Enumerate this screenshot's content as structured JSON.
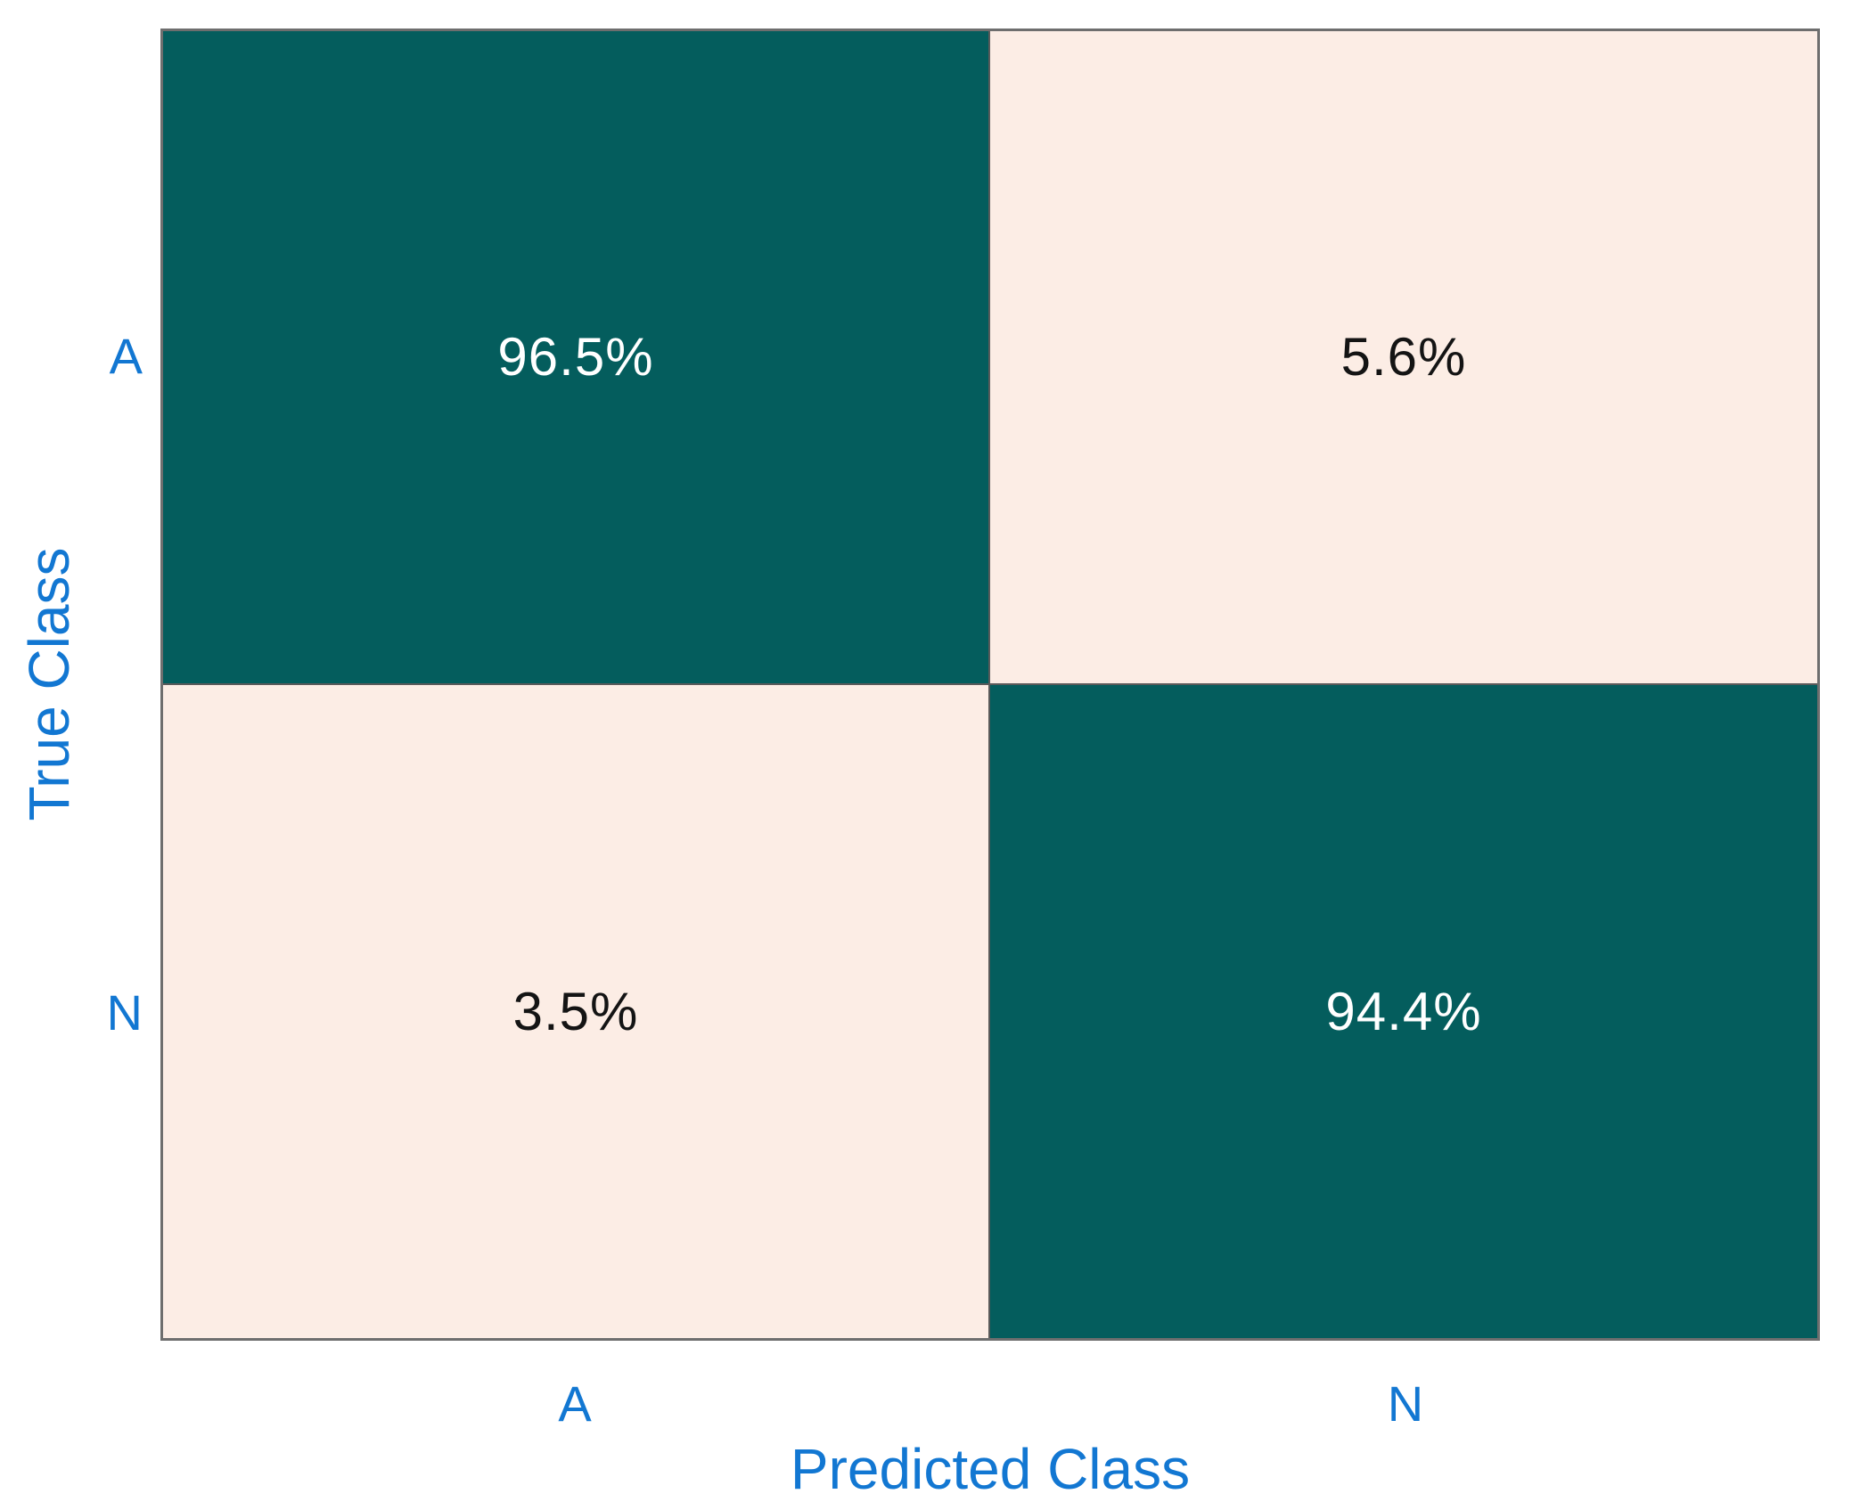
{
  "chart_data": {
    "type": "heatmap",
    "subtype": "confusion-matrix",
    "title": "",
    "xlabel": "Predicted Class",
    "ylabel": "True Class",
    "x_categories": [
      "A",
      "N"
    ],
    "y_categories": [
      "A",
      "N"
    ],
    "cells": [
      {
        "true_class": "A",
        "predicted_class": "A",
        "value": "96.5%",
        "bg": "#045d5d",
        "text_color": "#ffffff"
      },
      {
        "true_class": "A",
        "predicted_class": "N",
        "value": "5.6%",
        "bg": "#fcede5",
        "text_color": "#141414"
      },
      {
        "true_class": "N",
        "predicted_class": "A",
        "value": "3.5%",
        "bg": "#fcede5",
        "text_color": "#141414"
      },
      {
        "true_class": "N",
        "predicted_class": "N",
        "value": "94.4%",
        "bg": "#045d5d",
        "text_color": "#ffffff"
      }
    ],
    "layout": {
      "legend": "none",
      "grid": "cell-dividers-only",
      "axis_label_color": "#1277d2",
      "tick_label_color": "#1277d2",
      "border_color": "#5a5a5a",
      "colormap_high": "#045d5d",
      "colormap_low": "#fcede5"
    }
  }
}
